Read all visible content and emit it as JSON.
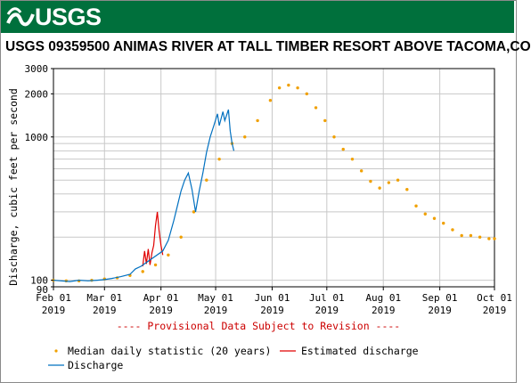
{
  "banner": {
    "logo_text": "USGS",
    "color": "#00703c"
  },
  "chart_data": {
    "type": "line",
    "title": "USGS 09359500 ANIMAS RIVER AT TALL TIMBER RESORT ABOVE TACOMA,CO",
    "ylabel": "Discharge, cubic feet per second",
    "yscale": "log",
    "ylim": [
      90,
      3000
    ],
    "yticks": [
      {
        "value": 90,
        "label": "90"
      },
      {
        "value": 100,
        "label": "100"
      },
      {
        "value": 1000,
        "label": "1000"
      },
      {
        "value": 2000,
        "label": "2000"
      },
      {
        "value": 3000,
        "label": "3000"
      }
    ],
    "xlim": [
      "2019-02-01",
      "2019-10-01"
    ],
    "xticks": [
      {
        "date": "2019-02-01",
        "label": "Feb 01",
        "year": "2019"
      },
      {
        "date": "2019-03-01",
        "label": "Mar 01",
        "year": "2019"
      },
      {
        "date": "2019-04-01",
        "label": "Apr 01",
        "year": "2019"
      },
      {
        "date": "2019-05-01",
        "label": "May 01",
        "year": "2019"
      },
      {
        "date": "2019-06-01",
        "label": "Jun 01",
        "year": "2019"
      },
      {
        "date": "2019-07-01",
        "label": "Jul 01",
        "year": "2019"
      },
      {
        "date": "2019-08-01",
        "label": "Aug 01",
        "year": "2019"
      },
      {
        "date": "2019-09-01",
        "label": "Sep 01",
        "year": "2019"
      },
      {
        "date": "2019-10-01",
        "label": "Oct 01",
        "year": "2019"
      }
    ],
    "grid": true,
    "annotation": "---- Provisional Data Subject to Revision ----",
    "series": [
      {
        "name": "Median daily statistic (20 years)",
        "style": "dots",
        "color": "#f0a000",
        "points": [
          [
            "2019-02-01",
            100
          ],
          [
            "2019-02-08",
            99
          ],
          [
            "2019-02-15",
            99
          ],
          [
            "2019-02-22",
            100
          ],
          [
            "2019-03-01",
            102
          ],
          [
            "2019-03-08",
            104
          ],
          [
            "2019-03-15",
            108
          ],
          [
            "2019-03-22",
            115
          ],
          [
            "2019-03-29",
            128
          ],
          [
            "2019-04-05",
            150
          ],
          [
            "2019-04-12",
            200
          ],
          [
            "2019-04-19",
            300
          ],
          [
            "2019-04-26",
            500
          ],
          [
            "2019-05-03",
            700
          ],
          [
            "2019-05-10",
            900
          ],
          [
            "2019-05-17",
            1000
          ],
          [
            "2019-05-24",
            1300
          ],
          [
            "2019-05-31",
            1800
          ],
          [
            "2019-06-05",
            2200
          ],
          [
            "2019-06-10",
            2300
          ],
          [
            "2019-06-15",
            2200
          ],
          [
            "2019-06-20",
            2000
          ],
          [
            "2019-06-25",
            1600
          ],
          [
            "2019-06-30",
            1300
          ],
          [
            "2019-07-05",
            1000
          ],
          [
            "2019-07-10",
            820
          ],
          [
            "2019-07-15",
            700
          ],
          [
            "2019-07-20",
            580
          ],
          [
            "2019-07-25",
            490
          ],
          [
            "2019-07-30",
            440
          ],
          [
            "2019-08-04",
            480
          ],
          [
            "2019-08-09",
            500
          ],
          [
            "2019-08-14",
            430
          ],
          [
            "2019-08-19",
            330
          ],
          [
            "2019-08-24",
            290
          ],
          [
            "2019-08-29",
            270
          ],
          [
            "2019-09-03",
            250
          ],
          [
            "2019-09-08",
            225
          ],
          [
            "2019-09-13",
            205
          ],
          [
            "2019-09-18",
            205
          ],
          [
            "2019-09-23",
            200
          ],
          [
            "2019-09-28",
            195
          ],
          [
            "2019-10-01",
            195
          ]
        ]
      },
      {
        "name": "Estimated discharge",
        "style": "line",
        "color": "#e00000",
        "points": [
          [
            "2019-03-22",
            125
          ],
          [
            "2019-03-23",
            160
          ],
          [
            "2019-03-24",
            130
          ],
          [
            "2019-03-25",
            165
          ],
          [
            "2019-03-26",
            128
          ],
          [
            "2019-03-27",
            155
          ],
          [
            "2019-03-28",
            175
          ],
          [
            "2019-03-29",
            240
          ],
          [
            "2019-03-30",
            300
          ],
          [
            "2019-03-31",
            220
          ],
          [
            "2019-04-01",
            175
          ],
          [
            "2019-04-02",
            150
          ]
        ]
      },
      {
        "name": "Discharge",
        "style": "line",
        "color": "#0070c0",
        "points": [
          [
            "2019-02-01",
            100
          ],
          [
            "2019-02-05",
            99
          ],
          [
            "2019-02-10",
            98
          ],
          [
            "2019-02-15",
            100
          ],
          [
            "2019-02-20",
            99
          ],
          [
            "2019-02-25",
            100
          ],
          [
            "2019-03-01",
            101
          ],
          [
            "2019-03-05",
            103
          ],
          [
            "2019-03-10",
            106
          ],
          [
            "2019-03-15",
            110
          ],
          [
            "2019-03-18",
            120
          ],
          [
            "2019-03-21",
            125
          ],
          [
            "2019-04-02",
            160
          ],
          [
            "2019-04-05",
            190
          ],
          [
            "2019-04-08",
            260
          ],
          [
            "2019-04-10",
            330
          ],
          [
            "2019-04-12",
            420
          ],
          [
            "2019-04-14",
            500
          ],
          [
            "2019-04-16",
            560
          ],
          [
            "2019-04-18",
            430
          ],
          [
            "2019-04-20",
            300
          ],
          [
            "2019-04-22",
            420
          ],
          [
            "2019-04-24",
            560
          ],
          [
            "2019-04-26",
            780
          ],
          [
            "2019-04-28",
            1000
          ],
          [
            "2019-04-30",
            1200
          ],
          [
            "2019-05-02",
            1450
          ],
          [
            "2019-05-03",
            1200
          ],
          [
            "2019-05-05",
            1500
          ],
          [
            "2019-05-06",
            1300
          ],
          [
            "2019-05-08",
            1550
          ],
          [
            "2019-05-09",
            1100
          ],
          [
            "2019-05-10",
            900
          ],
          [
            "2019-05-11",
            800
          ]
        ]
      }
    ],
    "legend": [
      {
        "label": "Median daily statistic (20 years)",
        "symbol": "dot",
        "color": "#f0a000"
      },
      {
        "label": "Estimated discharge",
        "symbol": "line",
        "color": "#e00000"
      },
      {
        "label": "Discharge",
        "symbol": "line",
        "color": "#0070c0"
      }
    ]
  }
}
